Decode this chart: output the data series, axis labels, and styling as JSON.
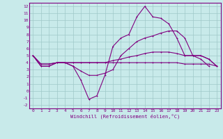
{
  "bg_color": "#c8eaea",
  "grid_color": "#9fc8c8",
  "line_color": "#800080",
  "markersize": 2,
  "linewidth": 0.8,
  "xlabel": "Windchill (Refroidissement éolien,°C)",
  "xlim": [
    -0.5,
    23.5
  ],
  "ylim": [
    -2.5,
    12.5
  ],
  "xticks": [
    0,
    1,
    2,
    3,
    4,
    5,
    6,
    7,
    8,
    9,
    10,
    11,
    12,
    13,
    14,
    15,
    16,
    17,
    18,
    19,
    20,
    21,
    22,
    23
  ],
  "yticks": [
    -2,
    -1,
    0,
    1,
    2,
    3,
    4,
    5,
    6,
    7,
    8,
    9,
    10,
    11,
    12
  ],
  "series": [
    [
      5.0,
      3.5,
      3.5,
      4.0,
      4.0,
      3.5,
      1.5,
      -1.2,
      -0.7,
      2.2,
      6.3,
      7.5,
      8.0,
      10.5,
      12.0,
      10.5,
      10.3,
      9.5,
      7.5,
      5.0,
      5.0,
      4.5,
      3.5,
      null
    ],
    [
      5.0,
      3.5,
      3.5,
      4.0,
      4.0,
      3.5,
      2.8,
      2.2,
      2.2,
      2.5,
      3.0,
      5.0,
      6.0,
      7.0,
      7.5,
      7.8,
      8.2,
      8.5,
      8.5,
      7.5,
      5.0,
      5.0,
      4.5,
      3.5
    ],
    [
      5.0,
      3.8,
      3.8,
      4.0,
      4.0,
      4.0,
      4.0,
      4.0,
      4.0,
      4.0,
      4.3,
      4.5,
      4.8,
      5.0,
      5.3,
      5.5,
      5.5,
      5.5,
      5.3,
      5.0,
      5.0,
      5.0,
      4.5,
      3.5
    ],
    [
      5.0,
      3.8,
      3.8,
      4.0,
      4.0,
      4.0,
      4.0,
      4.0,
      4.0,
      4.0,
      4.0,
      4.0,
      4.0,
      4.0,
      4.0,
      4.0,
      4.0,
      4.0,
      4.0,
      3.8,
      3.8,
      3.8,
      3.8,
      3.5
    ]
  ]
}
